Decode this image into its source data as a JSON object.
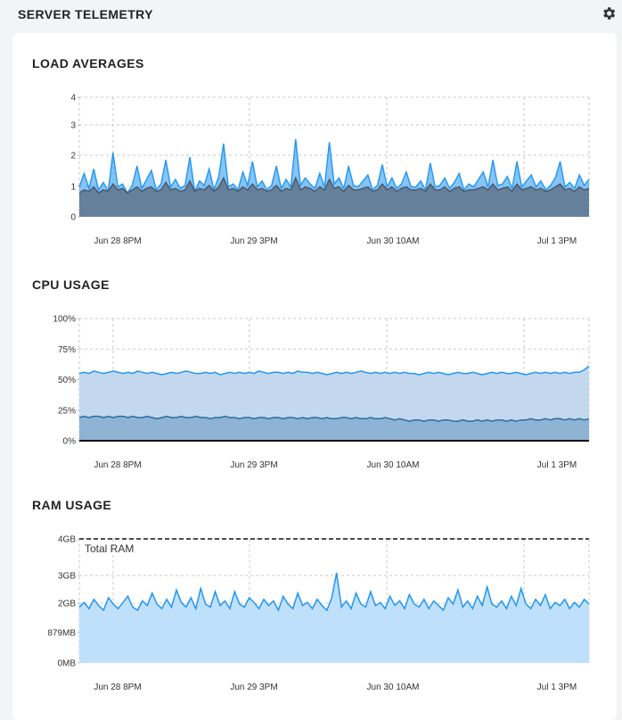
{
  "header": {
    "title": "SERVER TELEMETRY",
    "settings_icon": "gear-icon"
  },
  "colors": {
    "accent_light": "#2196f3",
    "load_dark": "#4b5563",
    "load_fill": "#64809b",
    "cpu_fill_light": "#c3d8ee",
    "cpu_fill_dark": "#8fb3d4",
    "cpu_line_dark": "#2b6ca3",
    "ram_fill": "#bfe0fb"
  },
  "x_axis_labels": [
    "Jun 28 8PM",
    "Jun 29 3PM",
    "Jun 30 10AM",
    "Jul 1 3PM"
  ],
  "chart_data": [
    {
      "type": "area",
      "title": "LOAD AVERAGES",
      "y_ticks": [
        "0",
        "1",
        "2",
        "3",
        "4"
      ],
      "ylim": [
        0,
        4
      ],
      "x_ticks": [
        "Jun 28 8PM",
        "Jun 29 3PM",
        "Jun 30 10AM",
        "Jul 1 3PM"
      ],
      "grid": true,
      "series": [
        {
          "values": [
            1.0,
            1.45,
            0.95,
            1.6,
            0.9,
            1.15,
            0.85,
            2.15,
            1.0,
            1.1,
            0.8,
            1.05,
            1.7,
            0.95,
            1.25,
            1.55,
            0.9,
            1.1,
            1.9,
            1.0,
            1.25,
            0.95,
            1.05,
            2.0,
            0.85,
            1.2,
            1.05,
            1.6,
            0.9,
            1.35,
            2.45,
            1.0,
            1.1,
            0.9,
            1.5,
            1.05,
            1.85,
            1.0,
            1.2,
            0.9,
            1.05,
            1.7,
            0.95,
            1.25,
            1.0,
            2.6,
            1.05,
            1.3,
            1.1,
            0.95,
            1.45,
            1.0,
            2.5,
            1.1,
            1.3,
            0.95,
            1.7,
            1.05,
            1.0,
            1.2,
            1.4,
            0.9,
            1.05,
            1.75,
            1.0,
            1.3,
            0.95,
            1.1,
            1.5,
            1.0,
            1.0,
            1.2,
            0.9,
            1.8,
            1.0,
            1.05,
            1.3,
            0.95,
            1.15,
            1.45,
            0.9,
            1.1,
            1.0,
            1.25,
            1.5,
            1.0,
            1.9,
            1.05,
            1.1,
            1.35,
            0.95,
            1.85,
            1.0,
            1.2,
            1.4,
            1.0,
            1.2,
            0.9,
            1.05,
            1.3,
            1.85,
            1.0,
            1.15,
            0.95,
            1.4,
            1.05,
            1.25
          ]
        },
        {
          "values": [
            0.8,
            0.9,
            0.85,
            1.0,
            0.8,
            0.9,
            0.85,
            1.1,
            0.9,
            0.95,
            0.8,
            0.9,
            1.0,
            0.85,
            0.95,
            1.0,
            0.85,
            0.9,
            1.15,
            0.9,
            0.95,
            0.85,
            0.9,
            1.2,
            0.85,
            0.95,
            0.9,
            1.05,
            0.85,
            1.0,
            1.3,
            0.9,
            0.95,
            0.85,
            1.0,
            0.9,
            1.1,
            0.9,
            0.95,
            0.85,
            0.9,
            1.05,
            0.85,
            0.95,
            0.9,
            1.3,
            0.9,
            1.0,
            0.95,
            0.85,
            1.0,
            0.9,
            1.25,
            0.95,
            1.0,
            0.85,
            1.05,
            0.9,
            0.9,
            0.95,
            1.0,
            0.85,
            0.9,
            1.1,
            0.9,
            1.0,
            0.85,
            0.95,
            1.0,
            0.9,
            0.9,
            0.95,
            0.85,
            1.1,
            0.9,
            0.9,
            1.0,
            0.85,
            0.95,
            1.0,
            0.85,
            0.9,
            0.9,
            0.95,
            1.0,
            0.9,
            1.1,
            0.9,
            0.95,
            1.0,
            0.85,
            1.1,
            0.9,
            0.95,
            1.0,
            0.9,
            0.95,
            0.85,
            0.9,
            1.0,
            1.1,
            0.9,
            0.95,
            0.85,
            1.0,
            0.9,
            0.95
          ]
        }
      ]
    },
    {
      "type": "area",
      "title": "CPU USAGE",
      "y_ticks": [
        "0%",
        "25%",
        "50%",
        "75%",
        "100%"
      ],
      "ylim": [
        0,
        100
      ],
      "x_ticks": [
        "Jun 28 8PM",
        "Jun 29 3PM",
        "Jun 30 10AM",
        "Jul 1 3PM"
      ],
      "grid": true,
      "series": [
        {
          "values": [
            55,
            56,
            55,
            57,
            56,
            55,
            56,
            57,
            56,
            55,
            56,
            55,
            57,
            56,
            55,
            56,
            55,
            54,
            55,
            56,
            55,
            56,
            57,
            56,
            55,
            55,
            56,
            55,
            56,
            54,
            55,
            56,
            55,
            56,
            55,
            56,
            55,
            57,
            56,
            55,
            56,
            56,
            55,
            56,
            55,
            57,
            56,
            56,
            55,
            56,
            55,
            54,
            55,
            56,
            55,
            56,
            55,
            56,
            57,
            56,
            55,
            56,
            55,
            56,
            55,
            56,
            55,
            56,
            55,
            55,
            54,
            55,
            56,
            55,
            56,
            55,
            54,
            55,
            56,
            55,
            55,
            56,
            55,
            54,
            55,
            56,
            55,
            56,
            55,
            55,
            56,
            55,
            54,
            55,
            56,
            55,
            56,
            55,
            56,
            55,
            56,
            55,
            56,
            56,
            58,
            61
          ]
        },
        {
          "values": [
            19,
            20,
            19,
            20,
            20,
            19,
            20,
            19,
            20,
            20,
            19,
            20,
            19,
            19,
            20,
            19,
            18,
            19,
            20,
            19,
            19,
            20,
            19,
            19,
            20,
            19,
            19,
            18,
            19,
            19,
            20,
            19,
            19,
            18,
            19,
            19,
            18,
            19,
            19,
            18,
            19,
            19,
            18,
            19,
            19,
            18,
            19,
            18,
            19,
            19,
            18,
            19,
            18,
            18,
            19,
            19,
            18,
            19,
            18,
            18,
            19,
            18,
            18,
            19,
            18,
            17,
            18,
            17,
            16,
            17,
            17,
            16,
            17,
            17,
            16,
            17,
            17,
            16,
            16,
            17,
            16,
            16,
            17,
            16,
            17,
            16,
            17,
            17,
            16,
            17,
            16,
            17,
            17,
            18,
            17,
            17,
            18,
            17,
            18,
            18,
            17,
            18,
            17,
            18,
            17,
            18
          ]
        }
      ]
    },
    {
      "type": "area",
      "title": "RAM USAGE",
      "y_ticks": [
        "0MB",
        "879MB",
        "2GB",
        "3GB",
        "4GB"
      ],
      "ylim": [
        0,
        4
      ],
      "x_ticks": [
        "Jun 28 8PM",
        "Jun 29 3PM",
        "Jun 30 10AM",
        "Jul 1 3PM"
      ],
      "grid": true,
      "reference_line": {
        "label": "Total RAM",
        "value": 4
      },
      "series": [
        {
          "values": [
            1.8,
            1.95,
            1.75,
            2.05,
            1.85,
            1.7,
            2.1,
            1.9,
            1.75,
            1.95,
            2.15,
            1.8,
            1.7,
            2.0,
            1.85,
            2.25,
            1.9,
            1.75,
            2.05,
            1.8,
            2.35,
            1.95,
            1.8,
            2.1,
            1.75,
            2.4,
            1.9,
            1.8,
            2.3,
            1.85,
            2.0,
            1.75,
            2.3,
            1.9,
            1.8,
            2.1,
            1.95,
            1.75,
            2.05,
            1.85,
            2.0,
            1.7,
            2.15,
            1.9,
            1.75,
            2.25,
            1.85,
            1.95,
            1.75,
            2.05,
            1.85,
            1.7,
            2.1,
            2.9,
            1.8,
            2.0,
            1.75,
            2.25,
            1.9,
            1.8,
            2.3,
            1.85,
            1.95,
            1.75,
            2.15,
            1.85,
            2.0,
            1.75,
            2.2,
            1.9,
            1.8,
            2.05,
            1.75,
            2.0,
            1.85,
            1.7,
            2.1,
            1.9,
            2.35,
            1.8,
            2.0,
            1.75,
            2.15,
            1.85,
            2.45,
            1.9,
            1.8,
            2.0,
            1.75,
            2.15,
            1.85,
            2.4,
            1.9,
            1.75,
            2.05,
            1.85,
            2.2,
            1.75,
            1.95,
            1.85,
            2.05,
            1.75,
            1.95,
            1.8,
            2.05,
            1.9
          ]
        }
      ]
    }
  ]
}
